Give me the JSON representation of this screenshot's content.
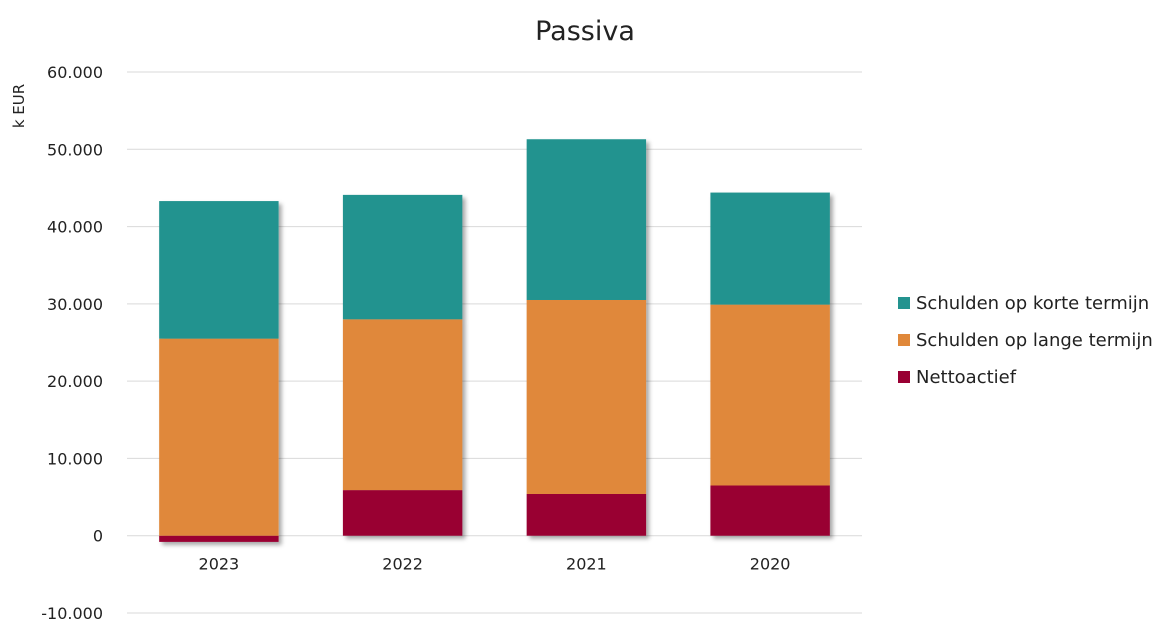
{
  "chart_data": {
    "type": "bar",
    "stacked": true,
    "title": "Passiva",
    "ylabel": "k EUR",
    "xlabel": "",
    "categories": [
      "2023",
      "2022",
      "2021",
      "2020"
    ],
    "series": [
      {
        "name": "Nettoactief",
        "color": "#990033",
        "values": [
          -800,
          5900,
          5400,
          6500
        ]
      },
      {
        "name": "Schulden op lange termijn",
        "color": "#E0883A",
        "values": [
          25500,
          22100,
          25100,
          23400
        ]
      },
      {
        "name": "Schulden op korte termijn",
        "color": "#23938F",
        "values": [
          17800,
          16100,
          20800,
          14500
        ]
      }
    ],
    "ylim": [
      -10000,
      60000
    ],
    "yticks": [
      -10000,
      0,
      10000,
      20000,
      30000,
      40000,
      50000,
      60000
    ],
    "ytick_labels": [
      "-10.000",
      "0",
      "10.000",
      "20.000",
      "30.000",
      "40.000",
      "50.000",
      "60.000"
    ],
    "legend_order": [
      "Schulden op korte termijn",
      "Schulden op lange termijn",
      "Nettoactief"
    ],
    "legend_position": "right",
    "grid": true
  }
}
